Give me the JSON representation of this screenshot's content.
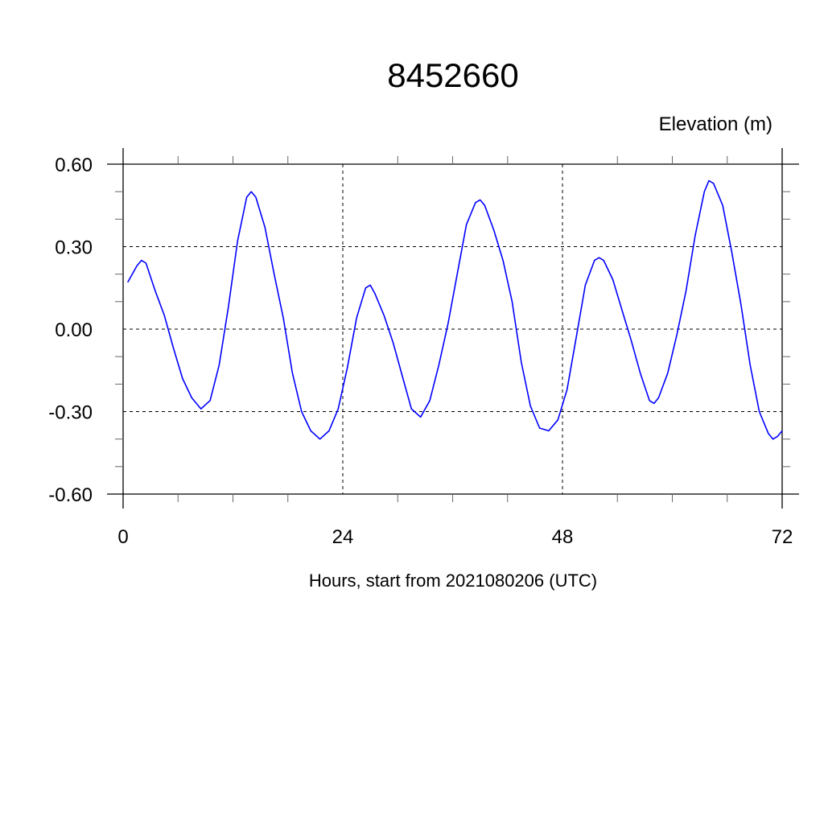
{
  "chart_data": {
    "type": "line",
    "title": "8452660",
    "ylabel": "Elevation (m)",
    "xlabel": "Hours, start from 2021080206 (UTC)",
    "xlim": [
      0,
      72
    ],
    "ylim": [
      -0.6,
      0.6
    ],
    "xticks": [
      0,
      24,
      48,
      72
    ],
    "xtick_labels": [
      "0",
      "24",
      "48",
      "72"
    ],
    "yticks": [
      -0.6,
      -0.3,
      0.0,
      0.3,
      0.6
    ],
    "ytick_labels": [
      "-0.60",
      "-0.30",
      "0.00",
      "0.30",
      "0.60"
    ],
    "x_minor_step": 6,
    "y_minor_step": 0.1,
    "grid": true,
    "grid_style": "dashed",
    "line_color": "#0000ff",
    "series": [
      {
        "x": [
          0.5,
          1.5,
          2,
          2.5,
          3.5,
          4.5,
          5.5,
          6.5,
          7.5,
          8.5,
          9.5,
          10.5,
          11.5,
          12.5,
          13.5,
          14,
          14.5,
          15.5,
          16.5,
          17.5,
          18.5,
          19.5,
          20.5,
          21.5,
          22.5,
          23.5,
          24.5,
          25.5,
          26.5,
          27,
          27.5,
          28.5,
          29.5,
          30.5,
          31.5,
          32.5,
          33.5,
          34.5,
          35.5,
          36.5,
          37.5,
          38.5,
          39,
          39.5,
          40.5,
          41.5,
          42.5,
          43.5,
          44.5,
          45.5,
          46.5,
          47.5,
          48.5,
          49.5,
          50.5,
          51.5,
          52,
          52.5,
          53.5,
          54.5,
          55.5,
          56.5,
          57.5,
          58,
          58.5,
          59.5,
          60.5,
          61.5,
          62.5,
          63.5,
          64,
          64.5,
          65.5,
          66.5,
          67.5,
          68.5,
          69.5,
          70.5,
          71,
          71.5,
          72
        ],
        "y": [
          0.17,
          0.23,
          0.25,
          0.24,
          0.14,
          0.05,
          -0.07,
          -0.18,
          -0.25,
          -0.29,
          -0.26,
          -0.13,
          0.08,
          0.32,
          0.48,
          0.5,
          0.48,
          0.37,
          0.2,
          0.04,
          -0.16,
          -0.3,
          -0.37,
          -0.4,
          -0.37,
          -0.29,
          -0.14,
          0.04,
          0.15,
          0.16,
          0.13,
          0.05,
          -0.05,
          -0.17,
          -0.29,
          -0.32,
          -0.26,
          -0.13,
          0.02,
          0.2,
          0.38,
          0.46,
          0.47,
          0.45,
          0.36,
          0.25,
          0.1,
          -0.12,
          -0.28,
          -0.36,
          -0.37,
          -0.33,
          -0.22,
          -0.03,
          0.16,
          0.25,
          0.26,
          0.25,
          0.18,
          0.07,
          -0.04,
          -0.16,
          -0.26,
          -0.27,
          -0.25,
          -0.16,
          -0.02,
          0.14,
          0.34,
          0.5,
          0.54,
          0.53,
          0.45,
          0.28,
          0.09,
          -0.13,
          -0.3,
          -0.38,
          -0.4,
          -0.39,
          -0.37
        ]
      }
    ]
  }
}
